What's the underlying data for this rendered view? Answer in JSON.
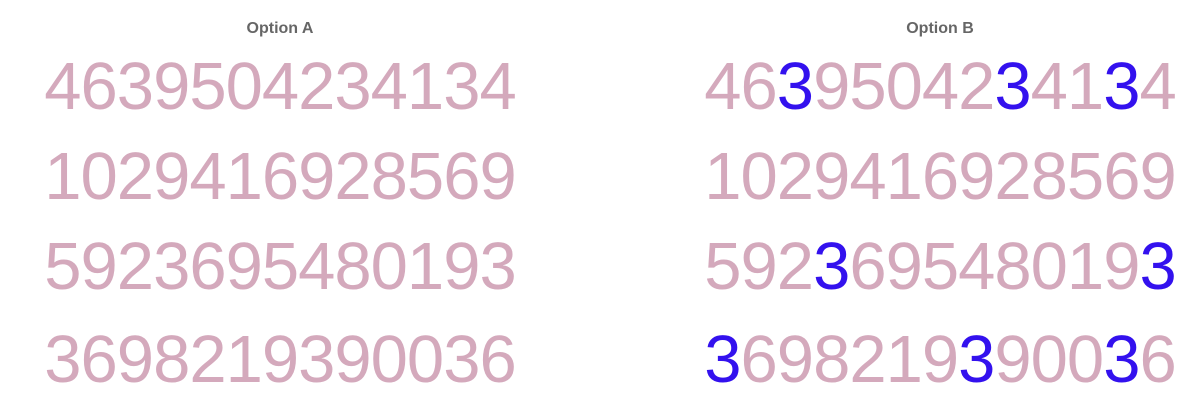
{
  "colors": {
    "base_digit": "#d4a9bc",
    "highlight_digit": "#3311ee",
    "title": "#666666",
    "background": "#ffffff"
  },
  "panels": [
    {
      "title": "Option A",
      "highlight_digit": null,
      "rows": [
        "4639504234134",
        "1029416928569",
        "5923695480193",
        "3698219390036"
      ]
    },
    {
      "title": "Option B",
      "highlight_digit": "3",
      "rows": [
        "4639504234134",
        "1029416928569",
        "5923695480193",
        "3698219390036"
      ]
    }
  ]
}
